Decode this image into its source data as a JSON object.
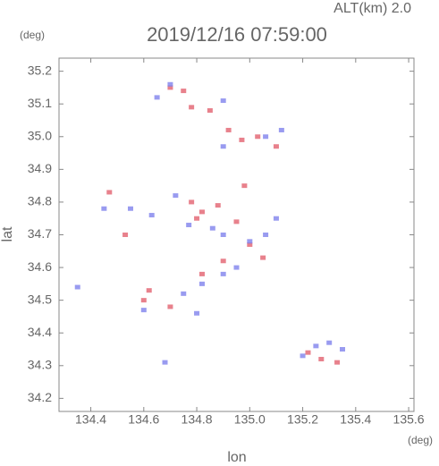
{
  "chart_data": {
    "type": "scatter",
    "title": "2019/12/16 07:59:00",
    "subtitle": "ALT(km)  2.0",
    "x_label": "lon",
    "y_label": "lat",
    "x_unit": "(deg)",
    "y_unit": "(deg)",
    "xlim": [
      134.28,
      135.62
    ],
    "ylim": [
      34.16,
      35.24
    ],
    "xticks": [
      134.4,
      134.6,
      134.8,
      {
        "value": 135,
        "label": "135.0"
      },
      135.2,
      135.4,
      135.6
    ],
    "yticks": [
      34.2,
      34.3,
      34.4,
      34.5,
      34.6,
      34.7,
      34.8,
      34.9,
      {
        "value": 35,
        "label": "35.0"
      },
      35.1,
      35.2
    ],
    "series": [
      {
        "color": "#e2626f",
        "x": [
          134.7,
          134.75,
          134.78,
          134.85,
          134.92,
          134.97,
          135.03,
          135.1,
          134.78,
          134.82,
          134.88,
          134.95,
          135.0,
          135.05,
          134.82,
          134.6,
          134.7,
          134.62,
          135.22,
          135.27,
          135.33,
          134.47,
          134.53,
          134.98,
          134.8,
          134.9
        ],
        "y": [
          35.15,
          35.14,
          35.09,
          35.08,
          35.02,
          34.99,
          35.0,
          34.97,
          34.8,
          34.77,
          34.79,
          34.74,
          34.67,
          34.63,
          34.58,
          34.5,
          34.48,
          34.53,
          34.34,
          34.32,
          34.31,
          34.83,
          34.7,
          34.85,
          34.75,
          34.62
        ]
      },
      {
        "color": "#7f82ec",
        "x": [
          134.65,
          134.7,
          134.9,
          135.06,
          135.12,
          134.9,
          134.55,
          134.63,
          134.72,
          134.77,
          134.86,
          134.9,
          135.0,
          135.06,
          135.1,
          134.9,
          134.82,
          134.75,
          134.6,
          134.8,
          135.2,
          135.25,
          135.3,
          134.35,
          134.45,
          134.68,
          134.95,
          135.35
        ],
        "y": [
          35.12,
          35.16,
          35.11,
          35.0,
          35.02,
          34.97,
          34.78,
          34.76,
          34.82,
          34.73,
          34.72,
          34.7,
          34.68,
          34.7,
          34.75,
          34.58,
          34.55,
          34.52,
          34.47,
          34.46,
          34.33,
          34.36,
          34.37,
          34.54,
          34.78,
          34.31,
          34.6,
          34.35
        ]
      }
    ]
  }
}
